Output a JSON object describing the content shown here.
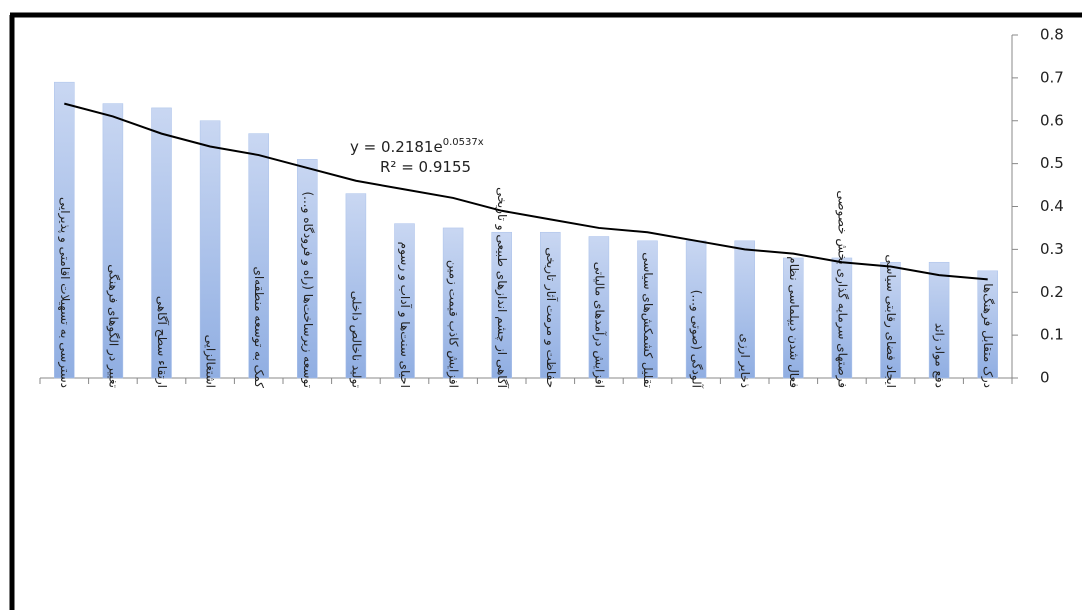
{
  "chart_data": {
    "type": "bar",
    "categories": [
      "دسترسی به تسهیلات اقامتی و پذیرایی",
      "تغییر در الگوهای فرهنگی",
      "ارتقاء سطح آگاهی",
      "اشتغالزایی",
      "کمک به توسعه منطقه‌ای",
      "توسعه زیرساخت‌ها (راه و فرودگاه و...)",
      "تولید ناخالص داخلی",
      "احیای سنت‌ها و آداب و رسوم",
      "افزایش کاذب قیمت زمین",
      "آگاهی از چشم اندازهای طبیعی و تاریخی",
      "حفاظت و مرمت آثار تاریخی",
      "افزایش درآمدهای مالیاتی",
      "تقلیل کشمکش‌های سیاسی",
      "آلودگی (صوتی و...)",
      "ذخایر ارزی",
      "فعال شدن دیپلماسی نظام",
      "فرصتهای سرمایه گذاری بخش خصوصی",
      "ایجاد فضای رقابتی سیاسی",
      "دفع مواد زائد",
      "درک متقابل فرهنگ‌ها"
    ],
    "values": [
      0.69,
      0.64,
      0.63,
      0.6,
      0.57,
      0.51,
      0.43,
      0.36,
      0.35,
      0.34,
      0.34,
      0.33,
      0.32,
      0.32,
      0.32,
      0.28,
      0.28,
      0.27,
      0.27,
      0.25
    ],
    "color": "#a9c0ea",
    "trendline": {
      "color": "#000000",
      "values": [
        0.64,
        0.61,
        0.57,
        0.54,
        0.52,
        0.49,
        0.46,
        0.44,
        0.42,
        0.39,
        0.37,
        0.35,
        0.34,
        0.32,
        0.3,
        0.29,
        0.27,
        0.26,
        0.24,
        0.23
      ]
    },
    "annotations": {
      "equation": "y = 0.2181e",
      "exponent": "0.0537x",
      "r_squared": "R² = 0.9155"
    },
    "ylim": [
      0,
      0.8
    ],
    "yticks": [
      0,
      0.1,
      0.2,
      0.3,
      0.4,
      0.5,
      0.6,
      0.7,
      0.8
    ],
    "y_axis_side": "right",
    "grid": false
  }
}
